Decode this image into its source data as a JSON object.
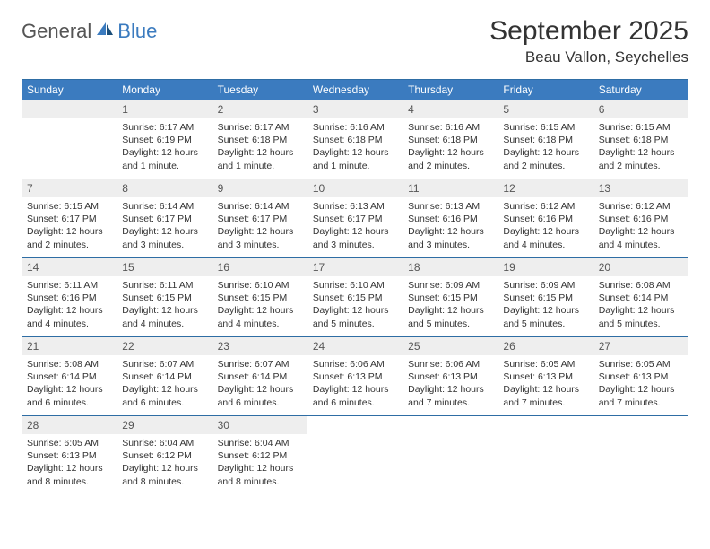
{
  "brand": {
    "part1": "General",
    "part2": "Blue"
  },
  "title": "September 2025",
  "location": "Beau Vallon, Seychelles",
  "colors": {
    "header_bg": "#3b7bbf",
    "header_text": "#ffffff",
    "rule": "#2e6da4",
    "daynum_bg": "#eeeeee",
    "text": "#333333",
    "logo_accent": "#3b7bbf",
    "logo_dark": "#1a4e7a"
  },
  "weekdays": [
    "Sunday",
    "Monday",
    "Tuesday",
    "Wednesday",
    "Thursday",
    "Friday",
    "Saturday"
  ],
  "leading_blanks": 1,
  "days": [
    {
      "n": "1",
      "sunrise": "Sunrise: 6:17 AM",
      "sunset": "Sunset: 6:19 PM",
      "daylight": "Daylight: 12 hours and 1 minute."
    },
    {
      "n": "2",
      "sunrise": "Sunrise: 6:17 AM",
      "sunset": "Sunset: 6:18 PM",
      "daylight": "Daylight: 12 hours and 1 minute."
    },
    {
      "n": "3",
      "sunrise": "Sunrise: 6:16 AM",
      "sunset": "Sunset: 6:18 PM",
      "daylight": "Daylight: 12 hours and 1 minute."
    },
    {
      "n": "4",
      "sunrise": "Sunrise: 6:16 AM",
      "sunset": "Sunset: 6:18 PM",
      "daylight": "Daylight: 12 hours and 2 minutes."
    },
    {
      "n": "5",
      "sunrise": "Sunrise: 6:15 AM",
      "sunset": "Sunset: 6:18 PM",
      "daylight": "Daylight: 12 hours and 2 minutes."
    },
    {
      "n": "6",
      "sunrise": "Sunrise: 6:15 AM",
      "sunset": "Sunset: 6:18 PM",
      "daylight": "Daylight: 12 hours and 2 minutes."
    },
    {
      "n": "7",
      "sunrise": "Sunrise: 6:15 AM",
      "sunset": "Sunset: 6:17 PM",
      "daylight": "Daylight: 12 hours and 2 minutes."
    },
    {
      "n": "8",
      "sunrise": "Sunrise: 6:14 AM",
      "sunset": "Sunset: 6:17 PM",
      "daylight": "Daylight: 12 hours and 3 minutes."
    },
    {
      "n": "9",
      "sunrise": "Sunrise: 6:14 AM",
      "sunset": "Sunset: 6:17 PM",
      "daylight": "Daylight: 12 hours and 3 minutes."
    },
    {
      "n": "10",
      "sunrise": "Sunrise: 6:13 AM",
      "sunset": "Sunset: 6:17 PM",
      "daylight": "Daylight: 12 hours and 3 minutes."
    },
    {
      "n": "11",
      "sunrise": "Sunrise: 6:13 AM",
      "sunset": "Sunset: 6:16 PM",
      "daylight": "Daylight: 12 hours and 3 minutes."
    },
    {
      "n": "12",
      "sunrise": "Sunrise: 6:12 AM",
      "sunset": "Sunset: 6:16 PM",
      "daylight": "Daylight: 12 hours and 4 minutes."
    },
    {
      "n": "13",
      "sunrise": "Sunrise: 6:12 AM",
      "sunset": "Sunset: 6:16 PM",
      "daylight": "Daylight: 12 hours and 4 minutes."
    },
    {
      "n": "14",
      "sunrise": "Sunrise: 6:11 AM",
      "sunset": "Sunset: 6:16 PM",
      "daylight": "Daylight: 12 hours and 4 minutes."
    },
    {
      "n": "15",
      "sunrise": "Sunrise: 6:11 AM",
      "sunset": "Sunset: 6:15 PM",
      "daylight": "Daylight: 12 hours and 4 minutes."
    },
    {
      "n": "16",
      "sunrise": "Sunrise: 6:10 AM",
      "sunset": "Sunset: 6:15 PM",
      "daylight": "Daylight: 12 hours and 4 minutes."
    },
    {
      "n": "17",
      "sunrise": "Sunrise: 6:10 AM",
      "sunset": "Sunset: 6:15 PM",
      "daylight": "Daylight: 12 hours and 5 minutes."
    },
    {
      "n": "18",
      "sunrise": "Sunrise: 6:09 AM",
      "sunset": "Sunset: 6:15 PM",
      "daylight": "Daylight: 12 hours and 5 minutes."
    },
    {
      "n": "19",
      "sunrise": "Sunrise: 6:09 AM",
      "sunset": "Sunset: 6:15 PM",
      "daylight": "Daylight: 12 hours and 5 minutes."
    },
    {
      "n": "20",
      "sunrise": "Sunrise: 6:08 AM",
      "sunset": "Sunset: 6:14 PM",
      "daylight": "Daylight: 12 hours and 5 minutes."
    },
    {
      "n": "21",
      "sunrise": "Sunrise: 6:08 AM",
      "sunset": "Sunset: 6:14 PM",
      "daylight": "Daylight: 12 hours and 6 minutes."
    },
    {
      "n": "22",
      "sunrise": "Sunrise: 6:07 AM",
      "sunset": "Sunset: 6:14 PM",
      "daylight": "Daylight: 12 hours and 6 minutes."
    },
    {
      "n": "23",
      "sunrise": "Sunrise: 6:07 AM",
      "sunset": "Sunset: 6:14 PM",
      "daylight": "Daylight: 12 hours and 6 minutes."
    },
    {
      "n": "24",
      "sunrise": "Sunrise: 6:06 AM",
      "sunset": "Sunset: 6:13 PM",
      "daylight": "Daylight: 12 hours and 6 minutes."
    },
    {
      "n": "25",
      "sunrise": "Sunrise: 6:06 AM",
      "sunset": "Sunset: 6:13 PM",
      "daylight": "Daylight: 12 hours and 7 minutes."
    },
    {
      "n": "26",
      "sunrise": "Sunrise: 6:05 AM",
      "sunset": "Sunset: 6:13 PM",
      "daylight": "Daylight: 12 hours and 7 minutes."
    },
    {
      "n": "27",
      "sunrise": "Sunrise: 6:05 AM",
      "sunset": "Sunset: 6:13 PM",
      "daylight": "Daylight: 12 hours and 7 minutes."
    },
    {
      "n": "28",
      "sunrise": "Sunrise: 6:05 AM",
      "sunset": "Sunset: 6:13 PM",
      "daylight": "Daylight: 12 hours and 8 minutes."
    },
    {
      "n": "29",
      "sunrise": "Sunrise: 6:04 AM",
      "sunset": "Sunset: 6:12 PM",
      "daylight": "Daylight: 12 hours and 8 minutes."
    },
    {
      "n": "30",
      "sunrise": "Sunrise: 6:04 AM",
      "sunset": "Sunset: 6:12 PM",
      "daylight": "Daylight: 12 hours and 8 minutes."
    }
  ]
}
